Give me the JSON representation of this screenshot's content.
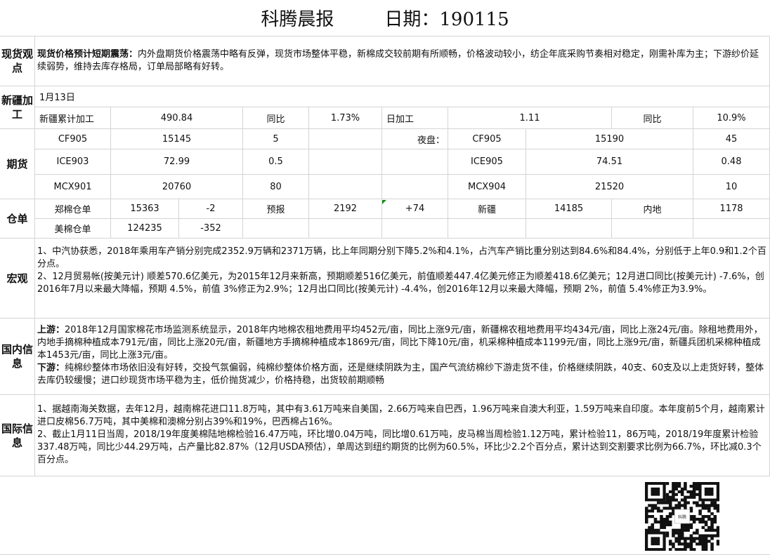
{
  "header": {
    "title": "科腾晨报",
    "date": "日期：190115"
  },
  "spot": {
    "label": "现货观点",
    "headline": "现货价格预计短期震荡：",
    "body": "内外盘期货价格震荡中略有反弹，现货市场整体平稳，新棉成交较前期有所顺畅，价格波动较小，纺企年底采购节奏相对稳定，刚需补库为主；下游纱价延续弱势，维持去库存格局，订单局部略有好转。"
  },
  "xinjiang": {
    "label": "新疆加工",
    "date": "1月13日",
    "cells": [
      "新疆累计加工",
      "490.84",
      "同比",
      "1.73%",
      "日加工",
      "1.11",
      "同比",
      "10.9%"
    ]
  },
  "futures": {
    "label": "期货",
    "rows": [
      [
        "CF905",
        "15145",
        "5",
        "夜盘：",
        "CF905",
        "15190",
        "45"
      ],
      [
        "ICE903",
        "72.99",
        "0.5",
        "",
        "ICE905",
        "74.51",
        "0.48"
      ],
      [
        "MCX901",
        "20760",
        "80",
        "",
        "MCX904",
        "21520",
        "10"
      ]
    ]
  },
  "warehouse": {
    "label": "仓单",
    "row1": [
      "郑棉仓单",
      "15363",
      "-2",
      "预报",
      "2192",
      "+74",
      "新疆",
      "14185",
      "内地",
      "1178"
    ],
    "row2": [
      "美棉仓单",
      "124235",
      "-352"
    ]
  },
  "macro": {
    "label": "宏观",
    "items": [
      "1、中汽协获悉，2018年乘用车产销分别完成2352.9万辆和2371万辆，比上年同期分别下降5.2%和4.1%，占汽车产销比重分别达到84.6%和84.4%，分别低于上年0.9和1.2个百分点。",
      "2、12月贸易帐(按美元计) 顺差570.6亿美元，为2015年12月来新高，预期顺差516亿美元，前值顺差447.4亿美元修正为顺差418.6亿美元；12月进口同比(按美元计) -7.6%，创2016年7月以来最大降幅，预期 4.5%，前值 3%修正为2.9%；12月出口同比(按美元计) -4.4%，创2016年12月以来最大降幅，预期 2%，前值 5.4%修正为3.9%。"
    ]
  },
  "domestic": {
    "label": "国内信息",
    "up_label": "上游：",
    "up": "2018年12月国家棉花市场监测系统显示，2018年内地棉农租地费用平均452元/亩，同比上涨9元/亩，新疆棉农租地费用平均434元/亩，同比上涨24元/亩。除租地费用外，内地手摘棉种植成本791元/亩，同比上涨20元/亩，新疆地方手摘棉种植成本1869元/亩，同比下降10元/亩，机采棉种植成本1199元/亩，同比上涨9元/亩，新疆兵团机采棉种植成本1453元/亩，同比上涨3元/亩。",
    "down_label": "下游：",
    "down": "纯棉纱整体市场依旧没有好转，交投气氛偏弱，纯棉纱整体价格方面，还是继续阴跌为主，国产气流纺棉纱下游走货不佳，价格继续阴跌，40支、60支及以上走货好转，整体去库仍较缓慢；进口纱现货市场平稳为主，低价抛货减少，价格持稳，出货较前期顺畅"
  },
  "international": {
    "label": "国际信息",
    "items": [
      "1、据越南海关数据，去年12月，越南棉花进口11.8万吨，其中有3.61万吨来自美国，2.66万吨来自巴西，1.96万吨来自澳大利亚，1.59万吨来自印度。本年度前5个月，越南累计进口皮棉56.7万吨，其中美棉和澳棉分别占39%和19%，巴西棉占16%。",
      "2、截止1月11日当周，2018/19年度美棉陆地棉检验16.47万吨，环比增0.04万吨，同比增0.61万吨，皮马棉当周检验1.12万吨，累计检验11，86万吨，2018/19年度累计检验337.48万吨，同比少44.29万吨，占产量比82.87%（12月USDA预估），单周达到纽约期货的比例为60.5%，环比少2.2个百分点，累计达到交割要求比例为66.7%，环比减0.3个百分点。"
    ]
  },
  "qr": {
    "logo_text": "科腾"
  }
}
